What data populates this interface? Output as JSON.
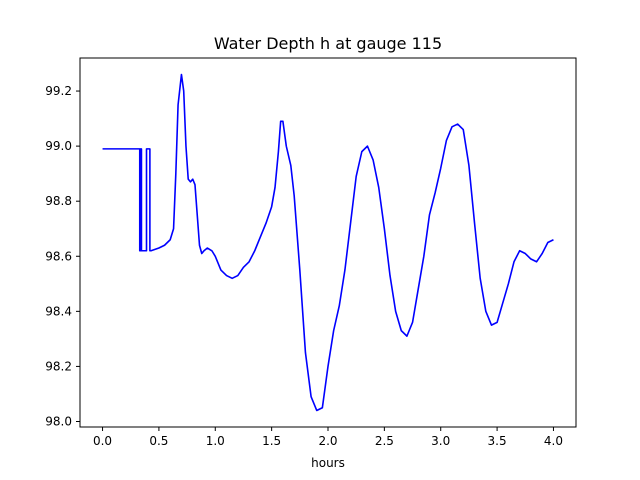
{
  "chart_data": {
    "type": "line",
    "title": "Water Depth h at gauge 115",
    "xlabel": "hours",
    "ylabel": "",
    "xlim": [
      -0.2,
      4.2
    ],
    "ylim": [
      97.98,
      99.32
    ],
    "xticks": [
      0.0,
      0.5,
      1.0,
      1.5,
      2.0,
      2.5,
      3.0,
      3.5,
      4.0
    ],
    "xtick_labels": [
      "0.0",
      "0.5",
      "1.0",
      "1.5",
      "2.0",
      "2.5",
      "3.0",
      "3.5",
      "4.0"
    ],
    "yticks": [
      98.0,
      98.2,
      98.4,
      98.6,
      98.8,
      99.0,
      99.2
    ],
    "ytick_labels": [
      "98.0",
      "98.2",
      "98.4",
      "98.6",
      "98.8",
      "99.0",
      "99.2"
    ],
    "grid": false,
    "line_color": "#0000ff",
    "series": [
      {
        "x": [
          0.0,
          0.33,
          0.33,
          0.335,
          0.335,
          0.345,
          0.345,
          0.355,
          0.355,
          0.39,
          0.39,
          0.4,
          0.4,
          0.42,
          0.42,
          0.43,
          0.43,
          0.5,
          0.55,
          0.6,
          0.63,
          0.65,
          0.67,
          0.7,
          0.72,
          0.74,
          0.76,
          0.78,
          0.8,
          0.82,
          0.84,
          0.86,
          0.88,
          0.9,
          0.93,
          0.97,
          1.0,
          1.05,
          1.1,
          1.15,
          1.2,
          1.25,
          1.3,
          1.35,
          1.4,
          1.45,
          1.5,
          1.53,
          1.56,
          1.58,
          1.6,
          1.63,
          1.67,
          1.7,
          1.75,
          1.8,
          1.85,
          1.9,
          1.95,
          2.0,
          2.05,
          2.1,
          2.15,
          2.2,
          2.25,
          2.3,
          2.35,
          2.4,
          2.45,
          2.5,
          2.55,
          2.6,
          2.65,
          2.7,
          2.75,
          2.8,
          2.85,
          2.9,
          2.95,
          3.0,
          3.05,
          3.1,
          3.15,
          3.2,
          3.25,
          3.3,
          3.35,
          3.4,
          3.45,
          3.5,
          3.55,
          3.6,
          3.65,
          3.7,
          3.75,
          3.8,
          3.85,
          3.9,
          3.95,
          4.0
        ],
        "y": [
          98.99,
          98.99,
          98.62,
          98.62,
          98.99,
          98.99,
          98.62,
          98.62,
          98.62,
          98.62,
          98.99,
          98.99,
          98.99,
          98.99,
          98.62,
          98.62,
          98.62,
          98.63,
          98.64,
          98.66,
          98.7,
          98.9,
          99.15,
          99.26,
          99.2,
          99.0,
          98.88,
          98.87,
          98.88,
          98.86,
          98.75,
          98.64,
          98.61,
          98.62,
          98.63,
          98.62,
          98.6,
          98.55,
          98.53,
          98.52,
          98.53,
          98.56,
          98.58,
          98.62,
          98.67,
          98.72,
          98.78,
          98.85,
          98.98,
          99.09,
          99.09,
          99.0,
          98.93,
          98.82,
          98.55,
          98.25,
          98.09,
          98.04,
          98.05,
          98.2,
          98.33,
          98.42,
          98.55,
          98.72,
          98.89,
          98.98,
          99.0,
          98.95,
          98.85,
          98.7,
          98.53,
          98.4,
          98.33,
          98.31,
          98.36,
          98.48,
          98.6,
          98.75,
          98.83,
          98.92,
          99.02,
          99.07,
          99.08,
          99.06,
          98.93,
          98.72,
          98.52,
          98.4,
          98.35,
          98.36,
          98.43,
          98.5,
          98.58,
          98.62,
          98.61,
          98.59,
          98.58,
          98.61,
          98.65,
          98.66
        ]
      }
    ]
  }
}
